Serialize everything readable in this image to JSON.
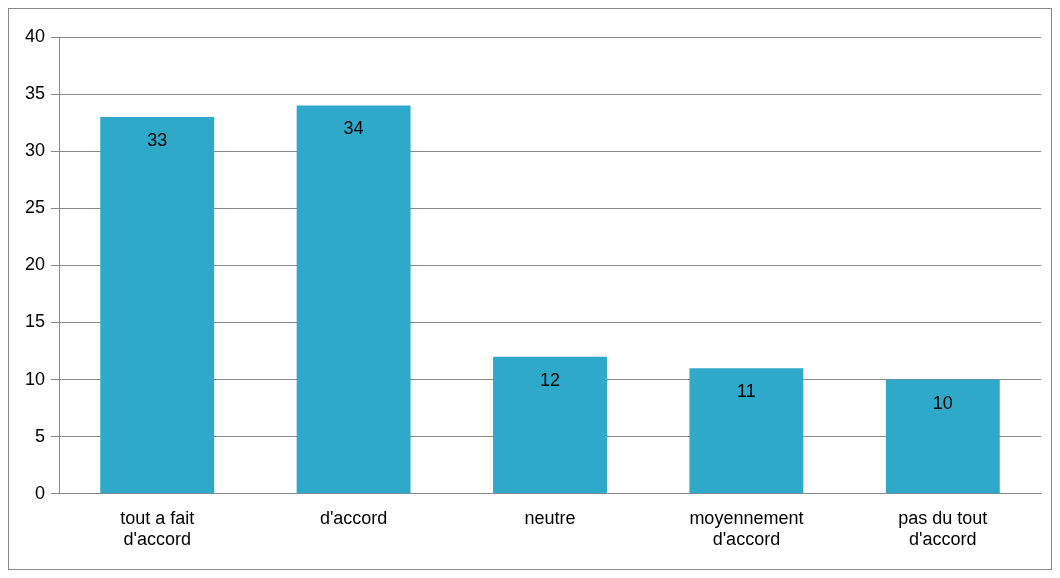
{
  "chart_data": {
    "type": "bar",
    "categories": [
      "tout a fait d'accord",
      "d'accord",
      "neutre",
      "moyennement d'accord",
      "pas du tout d'accord"
    ],
    "values": [
      33,
      34,
      12,
      11,
      10
    ],
    "color": "#2fa9ca",
    "ylim": [
      0,
      40
    ],
    "yticks": [
      0,
      5,
      10,
      15,
      20,
      25,
      30,
      35,
      40
    ],
    "grid": "y",
    "data_labels": true,
    "legend": false
  }
}
